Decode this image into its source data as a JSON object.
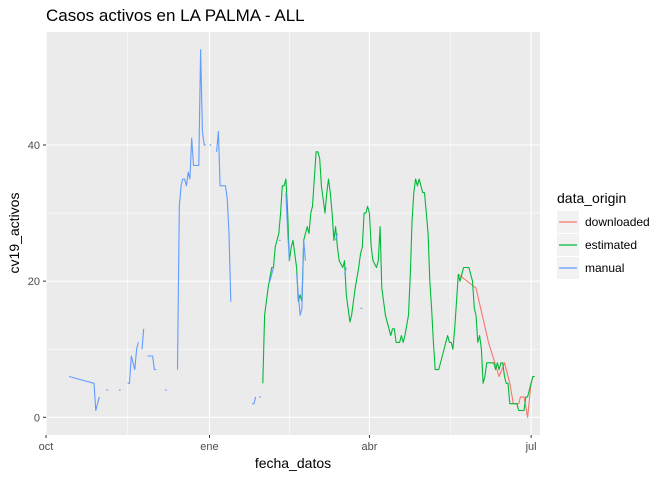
{
  "chart_data": {
    "type": "line",
    "title": "Casos activos en LA PALMA - ALL",
    "xlabel": "fecha_datos",
    "ylabel": "cv19_activos",
    "x_ticks": [
      {
        "date": "2020-10-01",
        "label": "oct"
      },
      {
        "date": "2021-01-01",
        "label": "ene"
      },
      {
        "date": "2021-04-01",
        "label": "abr"
      },
      {
        "date": "2021-07-01",
        "label": "jul"
      }
    ],
    "y_ticks": [
      0,
      20,
      40
    ],
    "xlim": [
      "2020-10-01",
      "2021-07-06"
    ],
    "ylim": [
      -2.6,
      56.6
    ],
    "grid": true,
    "legend": {
      "title": "data_origin",
      "position": "right"
    },
    "series": [
      {
        "name": "downloaded",
        "color": "#F8766D",
        "segments": [
          [
            [
              "2021-05-21",
              21
            ],
            [
              "2021-05-31",
              19
            ],
            [
              "2021-06-07",
              11
            ],
            [
              "2021-06-13",
              6
            ],
            [
              "2021-06-16",
              8
            ],
            [
              "2021-06-19",
              5
            ],
            [
              "2021-06-21",
              2
            ],
            [
              "2021-06-24",
              2
            ],
            [
              "2021-06-25",
              3
            ],
            [
              "2021-06-27",
              3
            ],
            [
              "2021-06-29",
              0
            ],
            [
              "2021-07-01",
              5
            ],
            [
              "2021-07-02",
              6
            ],
            [
              "2021-07-03",
              6
            ]
          ]
        ]
      },
      {
        "name": "estimated",
        "color": "#00BA38",
        "segments": [
          [
            [
              "2021-01-31",
              5
            ],
            [
              "2021-02-01",
              15
            ],
            [
              "2021-02-03",
              19
            ],
            [
              "2021-02-05",
              22
            ],
            [
              "2021-02-06",
              22
            ],
            [
              "2021-02-07",
              25
            ],
            [
              "2021-02-09",
              27
            ],
            [
              "2021-02-10",
              30
            ],
            [
              "2021-02-11",
              34
            ],
            [
              "2021-02-12",
              34
            ],
            [
              "2021-02-13",
              35
            ],
            [
              "2021-02-14",
              30
            ],
            [
              "2021-02-15",
              23
            ],
            [
              "2021-02-16",
              25
            ],
            [
              "2021-02-17",
              26
            ],
            [
              "2021-02-19",
              22
            ],
            [
              "2021-02-20",
              17
            ],
            [
              "2021-02-21",
              18
            ],
            [
              "2021-02-22",
              17
            ],
            [
              "2021-02-23",
              26
            ],
            [
              "2021-02-25",
              28
            ],
            [
              "2021-02-26",
              27
            ],
            [
              "2021-02-27",
              30
            ],
            [
              "2021-02-28",
              31
            ],
            [
              "2021-03-02",
              39
            ],
            [
              "2021-03-03",
              39
            ],
            [
              "2021-03-04",
              38
            ],
            [
              "2021-03-05",
              34
            ],
            [
              "2021-03-07",
              30
            ],
            [
              "2021-03-08",
              33
            ],
            [
              "2021-03-09",
              35
            ],
            [
              "2021-03-10",
              33
            ],
            [
              "2021-03-11",
              30
            ],
            [
              "2021-03-12",
              26
            ],
            [
              "2021-03-13",
              28
            ],
            [
              "2021-03-14",
              25
            ],
            [
              "2021-03-15",
              23
            ],
            [
              "2021-03-17",
              22
            ],
            [
              "2021-03-18",
              23
            ],
            [
              "2021-03-19",
              18
            ],
            [
              "2021-03-20",
              16
            ],
            [
              "2021-03-21",
              14
            ],
            [
              "2021-03-22",
              15
            ],
            [
              "2021-03-24",
              19
            ],
            [
              "2021-03-26",
              22
            ],
            [
              "2021-03-27",
              24
            ],
            [
              "2021-03-28",
              25
            ],
            [
              "2021-03-29",
              30
            ],
            [
              "2021-03-30",
              30
            ],
            [
              "2021-03-31",
              31
            ],
            [
              "2021-04-01",
              30
            ],
            [
              "2021-04-02",
              25
            ],
            [
              "2021-04-03",
              23
            ],
            [
              "2021-04-05",
              22
            ],
            [
              "2021-04-06",
              23
            ],
            [
              "2021-04-07",
              28
            ],
            [
              "2021-04-08",
              19
            ],
            [
              "2021-04-09",
              17
            ],
            [
              "2021-04-10",
              15
            ],
            [
              "2021-04-12",
              13
            ],
            [
              "2021-04-13",
              12
            ],
            [
              "2021-04-14",
              13
            ],
            [
              "2021-04-15",
              13
            ],
            [
              "2021-04-16",
              11
            ],
            [
              "2021-04-18",
              11
            ],
            [
              "2021-04-19",
              12
            ],
            [
              "2021-04-20",
              11
            ],
            [
              "2021-04-21",
              12
            ],
            [
              "2021-04-23",
              15
            ],
            [
              "2021-04-24",
              21
            ],
            [
              "2021-04-25",
              29
            ],
            [
              "2021-04-26",
              33
            ],
            [
              "2021-04-27",
              35
            ],
            [
              "2021-04-28",
              34
            ],
            [
              "2021-04-29",
              35
            ],
            [
              "2021-04-30",
              34
            ],
            [
              "2021-05-01",
              33
            ],
            [
              "2021-05-02",
              33
            ],
            [
              "2021-05-03",
              30
            ],
            [
              "2021-05-04",
              27
            ],
            [
              "2021-05-05",
              20
            ],
            [
              "2021-05-06",
              16
            ],
            [
              "2021-05-07",
              11
            ],
            [
              "2021-05-08",
              7
            ],
            [
              "2021-05-09",
              7
            ],
            [
              "2021-05-10",
              7
            ],
            [
              "2021-05-12",
              9
            ],
            [
              "2021-05-14",
              11
            ],
            [
              "2021-05-15",
              12
            ],
            [
              "2021-05-16",
              11
            ],
            [
              "2021-05-17",
              11
            ],
            [
              "2021-05-18",
              10
            ],
            [
              "2021-05-19",
              13
            ],
            [
              "2021-05-20",
              17
            ],
            [
              "2021-05-21",
              21
            ],
            [
              "2021-05-22",
              20
            ],
            [
              "2021-05-23",
              21
            ],
            [
              "2021-05-24",
              22
            ],
            [
              "2021-05-26",
              22
            ],
            [
              "2021-05-27",
              22
            ],
            [
              "2021-05-28",
              21
            ],
            [
              "2021-05-29",
              20
            ],
            [
              "2021-05-30",
              16
            ],
            [
              "2021-05-31",
              15
            ],
            [
              "2021-06-01",
              11
            ],
            [
              "2021-06-02",
              12
            ],
            [
              "2021-06-03",
              10
            ],
            [
              "2021-06-04",
              5
            ],
            [
              "2021-06-05",
              6
            ],
            [
              "2021-06-06",
              8
            ],
            [
              "2021-06-08",
              8
            ],
            [
              "2021-06-10",
              8
            ],
            [
              "2021-06-11",
              7
            ],
            [
              "2021-06-12",
              8
            ],
            [
              "2021-06-13",
              7
            ],
            [
              "2021-06-14",
              8
            ],
            [
              "2021-06-15",
              8
            ],
            [
              "2021-06-16",
              6
            ],
            [
              "2021-06-17",
              5
            ],
            [
              "2021-06-18",
              5
            ],
            [
              "2021-06-19",
              2
            ],
            [
              "2021-06-21",
              2
            ],
            [
              "2021-06-23",
              2
            ],
            [
              "2021-06-24",
              1
            ],
            [
              "2021-06-26",
              1
            ],
            [
              "2021-06-27",
              1
            ],
            [
              "2021-06-28",
              3
            ],
            [
              "2021-06-29",
              3
            ],
            [
              "2021-06-30",
              4
            ],
            [
              "2021-07-01",
              5
            ],
            [
              "2021-07-02",
              6
            ],
            [
              "2021-07-03",
              6
            ]
          ]
        ]
      },
      {
        "name": "manual",
        "color": "#619CFF",
        "segments": [
          [
            [
              "2020-10-14",
              6
            ],
            [
              "2020-10-28",
              5
            ],
            [
              "2020-10-29",
              1
            ],
            [
              "2020-10-30",
              2
            ],
            [
              "2020-10-31",
              3
            ]
          ],
          [
            [
              "2020-11-04",
              4
            ],
            [
              "2020-11-05",
              4
            ]
          ],
          [
            [
              "2020-11-11",
              4
            ],
            [
              "2020-11-12",
              4
            ]
          ],
          [
            [
              "2020-11-16",
              5
            ],
            [
              "2020-11-17",
              5
            ],
            [
              "2020-11-18",
              9
            ],
            [
              "2020-11-20",
              7
            ],
            [
              "2020-11-21",
              10
            ],
            [
              "2020-11-22",
              11
            ]
          ],
          [
            [
              "2020-11-24",
              10
            ],
            [
              "2020-11-25",
              13
            ]
          ],
          [
            [
              "2020-11-27",
              9
            ],
            [
              "2020-11-30",
              9
            ],
            [
              "2020-12-01",
              7
            ],
            [
              "2020-12-02",
              7
            ]
          ],
          [
            [
              "2020-12-07",
              4
            ],
            [
              "2020-12-08",
              4
            ]
          ],
          [
            [
              "2020-12-14",
              7
            ],
            [
              "2020-12-15",
              31
            ],
            [
              "2020-12-16",
              34
            ],
            [
              "2020-12-17",
              35
            ],
            [
              "2020-12-18",
              35
            ],
            [
              "2020-12-19",
              34
            ],
            [
              "2020-12-20",
              36
            ],
            [
              "2020-12-21",
              35
            ],
            [
              "2020-12-22",
              41
            ],
            [
              "2020-12-23",
              37
            ],
            [
              "2020-12-24",
              37
            ],
            [
              "2020-12-25",
              37
            ],
            [
              "2020-12-26",
              37
            ],
            [
              "2020-12-27",
              54
            ],
            [
              "2020-12-28",
              42
            ],
            [
              "2020-12-29",
              40
            ],
            [
              "2020-12-30",
              40
            ]
          ],
          [
            [
              "2021-01-01",
              40
            ],
            [
              "2021-01-02",
              40
            ]
          ],
          [
            [
              "2021-01-05",
              39
            ],
            [
              "2021-01-06",
              42
            ],
            [
              "2021-01-07",
              34
            ],
            [
              "2021-01-08",
              34
            ],
            [
              "2021-01-09",
              34
            ],
            [
              "2021-01-10",
              34
            ],
            [
              "2021-01-11",
              32
            ],
            [
              "2021-01-12",
              27
            ],
            [
              "2021-01-13",
              17
            ]
          ],
          [
            [
              "2021-01-25",
              2
            ],
            [
              "2021-01-26",
              2
            ],
            [
              "2021-01-27",
              3
            ]
          ],
          [
            [
              "2021-01-29",
              3
            ],
            [
              "2021-01-30",
              3
            ]
          ],
          [
            [
              "2021-02-04",
              20
            ],
            [
              "2021-02-05",
              21
            ],
            [
              "2021-02-06",
              22
            ]
          ],
          [
            [
              "2021-02-09",
              26
            ],
            [
              "2021-02-10",
              26
            ]
          ],
          [
            [
              "2021-02-13",
              33
            ],
            [
              "2021-02-14",
              27
            ],
            [
              "2021-02-15",
              23
            ]
          ],
          [
            [
              "2021-02-19",
              21
            ],
            [
              "2021-02-21",
              15
            ],
            [
              "2021-02-22",
              16
            ],
            [
              "2021-02-23",
              26
            ],
            [
              "2021-02-24",
              23
            ]
          ],
          [
            [
              "2021-03-13",
              26
            ],
            [
              "2021-03-14",
              27
            ]
          ],
          [
            [
              "2021-03-18",
              21
            ],
            [
              "2021-03-19",
              22
            ]
          ],
          [
            [
              "2021-03-27",
              16
            ],
            [
              "2021-03-28",
              16
            ]
          ]
        ]
      }
    ]
  }
}
